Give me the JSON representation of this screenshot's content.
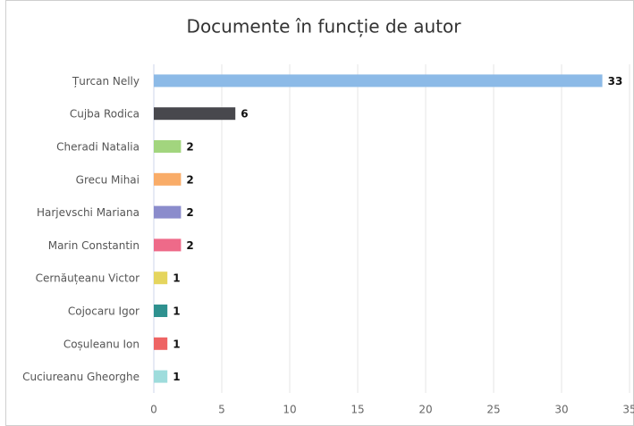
{
  "chart_data": {
    "type": "bar",
    "orientation": "horizontal",
    "title": "Documente în funcție de autor",
    "categories": [
      "Țurcan Nelly",
      "Cujba Rodica",
      "Cheradi Natalia",
      "Grecu Mihai",
      "Harjevschi Mariana",
      "Marin Constantin",
      "Cernăuțeanu Victor",
      "Cojocaru Igor",
      "Coșuleanu Ion",
      "Cuciureanu Gheorghe"
    ],
    "values": [
      33,
      6,
      2,
      2,
      2,
      2,
      1,
      1,
      1,
      1
    ],
    "colors": [
      "#8cbae7",
      "#48484d",
      "#a2d57e",
      "#f9ac68",
      "#8b8ccc",
      "#ee6a89",
      "#e5d55e",
      "#2e918f",
      "#ee6464",
      "#9edcdc"
    ],
    "xlim": [
      0,
      35
    ],
    "xticks": [
      0,
      5,
      10,
      15,
      20,
      25,
      30,
      35
    ],
    "grid": true
  }
}
